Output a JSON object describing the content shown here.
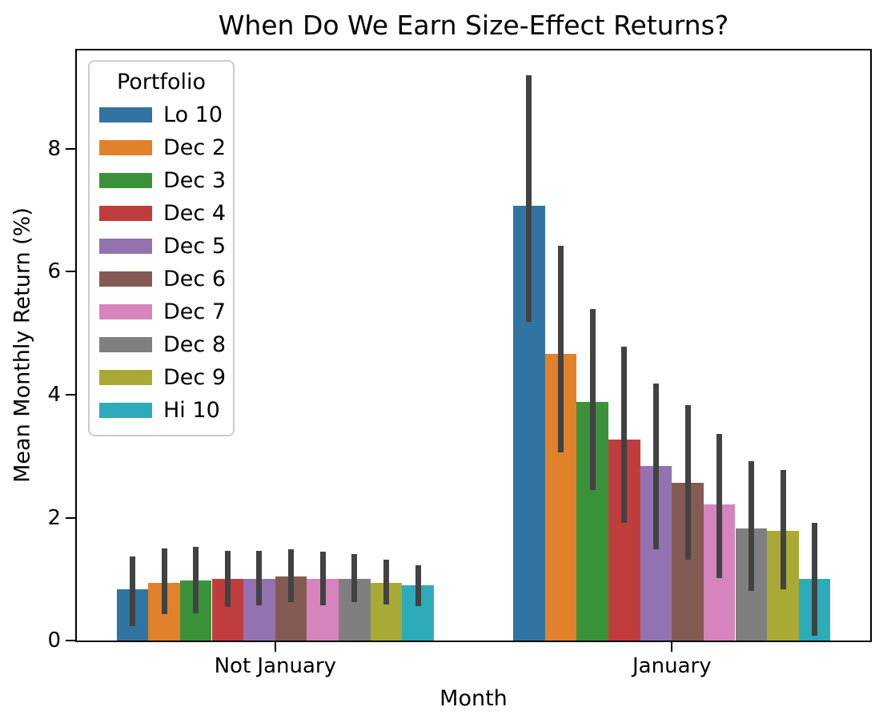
{
  "chart_data": {
    "type": "bar",
    "title": "When Do We Earn Size-Effect Returns?",
    "xlabel": "Month",
    "ylabel": "Mean Monthly Return (%)",
    "categories": [
      "Not January",
      "January"
    ],
    "yticks": [
      0,
      2,
      4,
      6,
      8
    ],
    "ylim": [
      0,
      9.6
    ],
    "grid": false,
    "legend_title": "Portfolio",
    "legend_position": "upper-left",
    "error_bar_color": "#424242",
    "series": [
      {
        "name": "Lo 10",
        "color": "#3274a1",
        "values": [
          0.83,
          7.07
        ],
        "err_low": [
          0.24,
          5.18
        ],
        "err_high": [
          1.37,
          9.2
        ]
      },
      {
        "name": "Dec 2",
        "color": "#e1812c",
        "values": [
          0.94,
          4.67
        ],
        "err_low": [
          0.43,
          3.06
        ],
        "err_high": [
          1.5,
          6.42
        ]
      },
      {
        "name": "Dec 3",
        "color": "#3a923a",
        "values": [
          0.98,
          3.88
        ],
        "err_low": [
          0.44,
          2.45
        ],
        "err_high": [
          1.52,
          5.39
        ]
      },
      {
        "name": "Dec 4",
        "color": "#c03d3e",
        "values": [
          1.01,
          3.27
        ],
        "err_low": [
          0.55,
          1.91
        ],
        "err_high": [
          1.46,
          4.78
        ]
      },
      {
        "name": "Dec 5",
        "color": "#9372b2",
        "values": [
          1.0,
          2.84
        ],
        "err_low": [
          0.57,
          1.48
        ],
        "err_high": [
          1.46,
          4.18
        ]
      },
      {
        "name": "Dec 6",
        "color": "#845b53",
        "values": [
          1.04,
          2.57
        ],
        "err_low": [
          0.62,
          1.32
        ],
        "err_high": [
          1.48,
          3.83
        ]
      },
      {
        "name": "Dec 7",
        "color": "#d684bd",
        "values": [
          1.01,
          2.21
        ],
        "err_low": [
          0.57,
          1.02
        ],
        "err_high": [
          1.44,
          3.36
        ]
      },
      {
        "name": "Dec 8",
        "color": "#7f7f7f",
        "values": [
          1.01,
          1.83
        ],
        "err_low": [
          0.63,
          0.81
        ],
        "err_high": [
          1.41,
          2.92
        ]
      },
      {
        "name": "Dec 9",
        "color": "#a9aa35",
        "values": [
          0.94,
          1.78
        ],
        "err_low": [
          0.59,
          0.84
        ],
        "err_high": [
          1.31,
          2.77
        ]
      },
      {
        "name": "Hi 10",
        "color": "#2eabb8",
        "values": [
          0.9,
          1.01
        ],
        "err_low": [
          0.56,
          0.08
        ],
        "err_high": [
          1.23,
          1.92
        ]
      }
    ]
  }
}
